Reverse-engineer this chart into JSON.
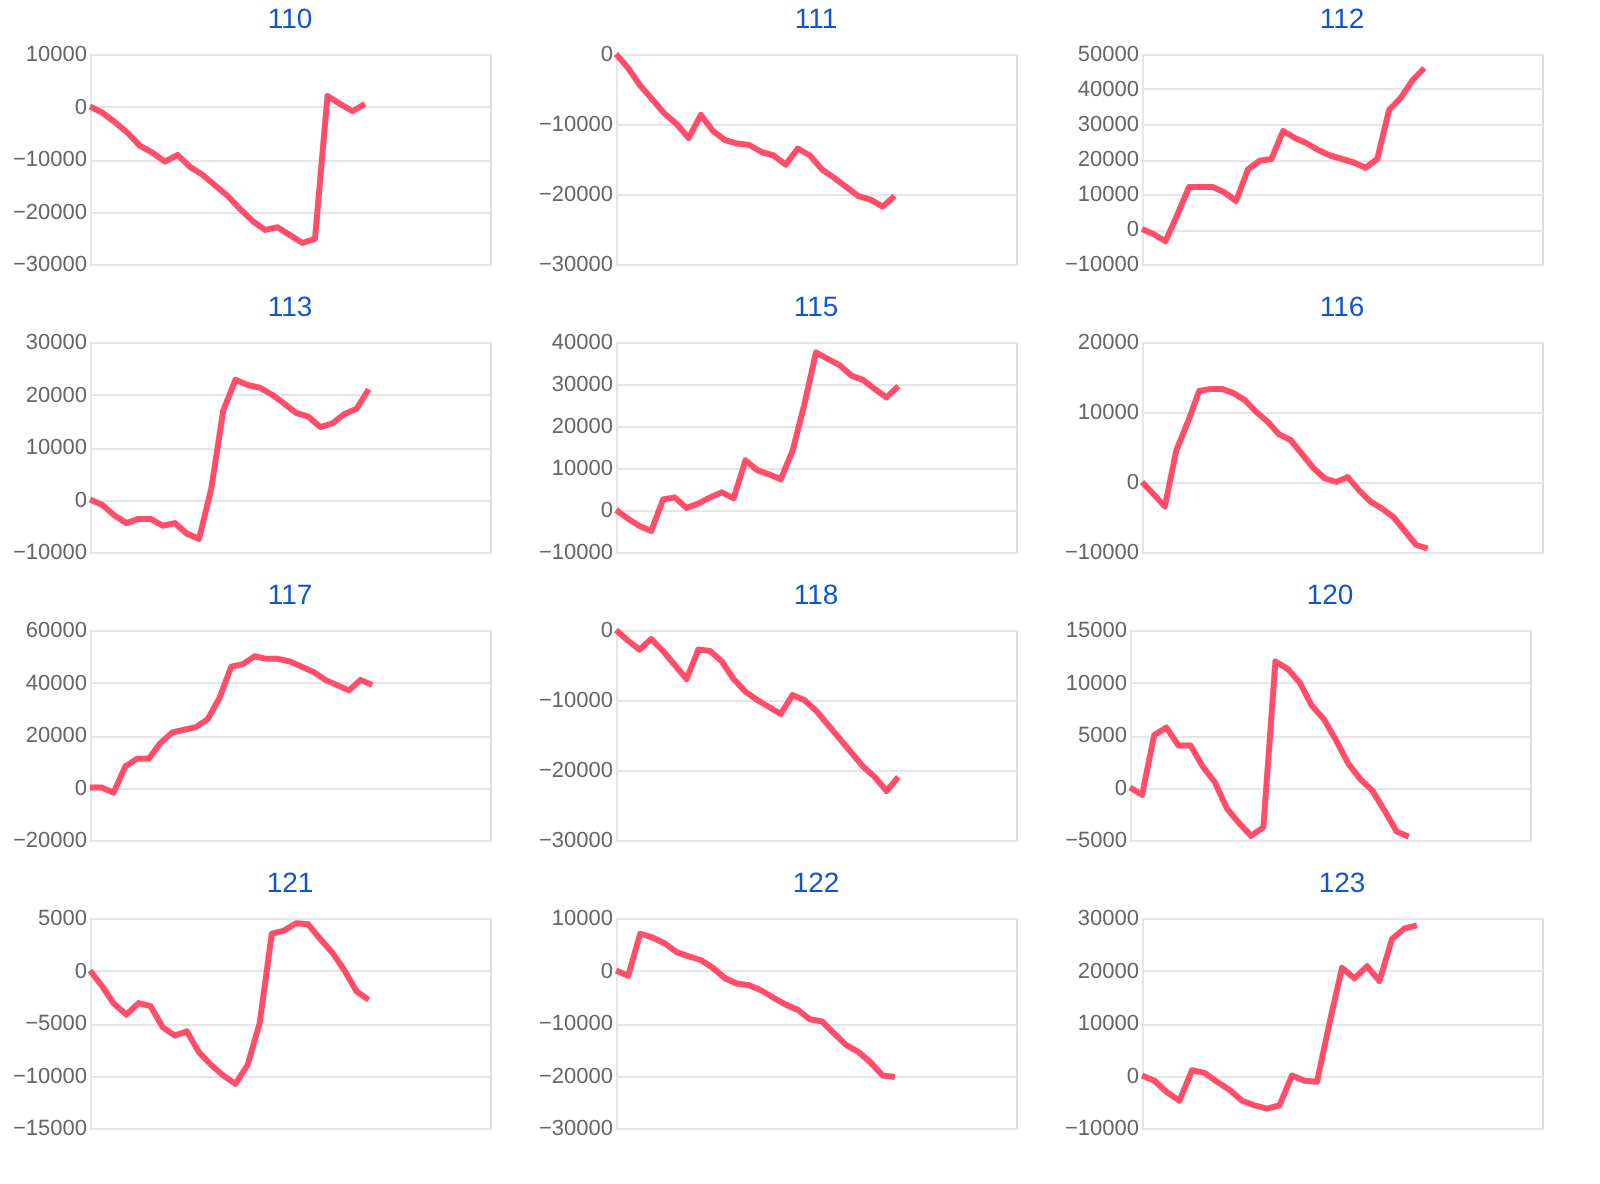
{
  "chart_data": [
    {
      "type": "line",
      "title": "110",
      "categories": [
        null,
        null,
        null,
        null,
        null,
        null,
        null,
        null,
        null,
        null,
        null,
        null,
        null,
        null,
        null,
        null,
        null,
        null,
        null,
        null,
        null,
        null,
        null,
        null,
        null,
        null,
        null,
        null,
        null,
        null,
        null,
        null,
        null
      ],
      "series": [
        {
          "color": "#ff4d6a",
          "values": [
            0,
            -1200,
            -3000,
            -5000,
            -7500,
            -8800,
            -10500,
            -9200,
            -11500,
            -13000,
            -15000,
            -17000,
            -19500,
            -21800,
            -23500,
            -23000,
            -24500,
            -26000,
            -25200,
            2000,
            500,
            -900,
            500,
            null,
            null,
            null,
            null,
            null,
            null,
            null,
            null,
            null,
            null
          ]
        }
      ],
      "ylim": [
        -30000,
        10000
      ],
      "yticks": [
        -30000,
        -20000,
        -10000,
        0,
        10000
      ],
      "grid": "y",
      "tick_labels": "y"
    },
    {
      "type": "line",
      "title": "111",
      "categories": [
        null,
        null,
        null,
        null,
        null,
        null,
        null,
        null,
        null,
        null,
        null,
        null,
        null,
        null,
        null,
        null,
        null,
        null,
        null,
        null,
        null,
        null,
        null,
        null,
        null,
        null,
        null,
        null,
        null,
        null,
        null,
        null,
        null,
        null
      ],
      "series": [
        {
          "color": "#ff4d6a",
          "values": [
            0,
            -2000,
            -4500,
            -6500,
            -8500,
            -10000,
            -12000,
            -8700,
            -11000,
            -12300,
            -12800,
            -13000,
            -14000,
            -14500,
            -15800,
            -13500,
            -14500,
            -16500,
            -17700,
            -19000,
            -20300,
            -20800,
            -21800,
            -20300,
            null,
            null,
            null,
            null,
            null,
            null,
            null,
            null,
            null,
            null
          ]
        }
      ],
      "ylim": [
        -30000,
        0
      ],
      "yticks": [
        -30000,
        -20000,
        -10000,
        0
      ],
      "grid": "y",
      "tick_labels": "y"
    },
    {
      "type": "line",
      "title": "112",
      "categories": [
        null,
        null,
        null,
        null,
        null,
        null,
        null,
        null,
        null,
        null,
        null,
        null,
        null,
        null,
        null,
        null,
        null,
        null,
        null,
        null,
        null,
        null,
        null,
        null,
        null,
        null,
        null,
        null,
        null,
        null,
        null,
        null,
        null,
        null,
        null
      ],
      "series": [
        {
          "color": "#ff4d6a",
          "values": [
            0,
            -1500,
            -3500,
            4000,
            12000,
            12000,
            12000,
            10500,
            8000,
            17000,
            19500,
            20000,
            28000,
            26000,
            24500,
            22500,
            21000,
            20000,
            19000,
            17500,
            20000,
            34000,
            37500,
            42500,
            46000,
            null,
            null,
            null,
            null,
            null,
            null,
            null,
            null,
            null,
            null
          ]
        }
      ],
      "ylim": [
        -10000,
        50000
      ],
      "yticks": [
        -10000,
        0,
        10000,
        20000,
        30000,
        40000,
        50000
      ],
      "grid": "y",
      "tick_labels": "y"
    },
    {
      "type": "line",
      "title": "113",
      "categories": [
        null,
        null,
        null,
        null,
        null,
        null,
        null,
        null,
        null,
        null,
        null,
        null,
        null,
        null,
        null,
        null,
        null,
        null,
        null,
        null,
        null,
        null,
        null,
        null,
        null,
        null,
        null,
        null,
        null,
        null,
        null,
        null,
        null,
        null
      ],
      "series": [
        {
          "color": "#ff4d6a",
          "values": [
            0,
            -1000,
            -3000,
            -4500,
            -3700,
            -3700,
            -5000,
            -4500,
            -6500,
            -7500,
            2000,
            17000,
            22800,
            21800,
            21300,
            20000,
            18300,
            16500,
            15800,
            13800,
            14500,
            16300,
            17300,
            21000,
            null,
            null,
            null,
            null,
            null,
            null,
            null,
            null,
            null,
            null
          ]
        }
      ],
      "ylim": [
        -10000,
        30000
      ],
      "yticks": [
        -10000,
        0,
        10000,
        20000,
        30000
      ],
      "grid": "y",
      "tick_labels": "y"
    },
    {
      "type": "line",
      "title": "115",
      "categories": [
        null,
        null,
        null,
        null,
        null,
        null,
        null,
        null,
        null,
        null,
        null,
        null,
        null,
        null,
        null,
        null,
        null,
        null,
        null,
        null,
        null,
        null,
        null,
        null,
        null,
        null,
        null,
        null,
        null,
        null,
        null,
        null,
        null,
        null,
        null
      ],
      "series": [
        {
          "color": "#ff4d6a",
          "values": [
            0,
            -2000,
            -3800,
            -5000,
            2500,
            3000,
            500,
            1500,
            3000,
            4200,
            2800,
            11800,
            9500,
            8500,
            7300,
            14000,
            25000,
            37500,
            36000,
            34500,
            32000,
            31000,
            28800,
            26800,
            29500,
            null,
            null,
            null,
            null,
            null,
            null,
            null,
            null,
            null,
            null
          ]
        }
      ],
      "ylim": [
        -10000,
        40000
      ],
      "yticks": [
        -10000,
        0,
        10000,
        20000,
        30000,
        40000
      ],
      "grid": "y",
      "tick_labels": "y"
    },
    {
      "type": "line",
      "title": "116",
      "categories": [
        null,
        null,
        null,
        null,
        null,
        null,
        null,
        null,
        null,
        null,
        null,
        null,
        null,
        null,
        null,
        null,
        null,
        null,
        null,
        null,
        null,
        null,
        null,
        null,
        null,
        null,
        null,
        null,
        null,
        null,
        null,
        null,
        null,
        null,
        null,
        null
      ],
      "series": [
        {
          "color": "#ff4d6a",
          "values": [
            0,
            -1700,
            -3500,
            4500,
            8500,
            13000,
            13300,
            13300,
            12700,
            11700,
            10000,
            8600,
            6800,
            6000,
            4000,
            2000,
            500,
            0,
            700,
            -1200,
            -2800,
            -3800,
            -5000,
            -7000,
            -9000,
            -9500,
            null,
            null,
            null,
            null,
            null,
            null,
            null,
            null,
            null,
            null
          ]
        }
      ],
      "ylim": [
        -10000,
        20000
      ],
      "yticks": [
        -10000,
        0,
        10000,
        20000
      ],
      "grid": "y",
      "tick_labels": "y"
    },
    {
      "type": "line",
      "title": "117",
      "categories": [
        null,
        null,
        null,
        null,
        null,
        null,
        null,
        null,
        null,
        null,
        null,
        null,
        null,
        null,
        null,
        null,
        null,
        null,
        null,
        null,
        null,
        null,
        null,
        null,
        null,
        null,
        null,
        null,
        null,
        null,
        null,
        null,
        null,
        null,
        null
      ],
      "series": [
        {
          "color": "#ff4d6a",
          "values": [
            0,
            0,
            -2000,
            8000,
            11000,
            11000,
            17000,
            21000,
            22000,
            23000,
            26000,
            34000,
            46000,
            47000,
            50000,
            49000,
            49000,
            48000,
            46000,
            44000,
            41000,
            39000,
            37000,
            41000,
            39000,
            null,
            null,
            null,
            null,
            null,
            null,
            null,
            null,
            null,
            null
          ]
        }
      ],
      "ylim": [
        -20000,
        60000
      ],
      "yticks": [
        -20000,
        0,
        20000,
        40000,
        60000
      ],
      "grid": "y",
      "tick_labels": "y"
    },
    {
      "type": "line",
      "title": "118",
      "categories": [
        null,
        null,
        null,
        null,
        null,
        null,
        null,
        null,
        null,
        null,
        null,
        null,
        null,
        null,
        null,
        null,
        null,
        null,
        null,
        null,
        null,
        null,
        null,
        null,
        null,
        null,
        null,
        null,
        null,
        null,
        null,
        null,
        null,
        null,
        null
      ],
      "series": [
        {
          "color": "#ff4d6a",
          "values": [
            0,
            -1500,
            -2800,
            -1300,
            -3000,
            -5000,
            -7000,
            -2800,
            -3000,
            -4500,
            -7000,
            -8800,
            -10000,
            -11000,
            -12000,
            -9300,
            -10000,
            -11500,
            -13500,
            -15500,
            -17500,
            -19500,
            -21000,
            -23000,
            -21000,
            null,
            null,
            null,
            null,
            null,
            null,
            null,
            null,
            null,
            null
          ]
        }
      ],
      "ylim": [
        -30000,
        0
      ],
      "yticks": [
        -30000,
        -20000,
        -10000,
        0
      ],
      "grid": "y",
      "tick_labels": "y"
    },
    {
      "type": "line",
      "title": "120",
      "categories": [
        null,
        null,
        null,
        null,
        null,
        null,
        null,
        null,
        null,
        null,
        null,
        null,
        null,
        null,
        null,
        null,
        null,
        null,
        null,
        null,
        null,
        null,
        null,
        null,
        null,
        null,
        null,
        null,
        null,
        null,
        null,
        null,
        null,
        null
      ],
      "series": [
        {
          "color": "#ff4d6a",
          "values": [
            0,
            -700,
            5000,
            5700,
            4000,
            4000,
            2000,
            500,
            -2000,
            -3400,
            -4600,
            -3800,
            12000,
            11300,
            10000,
            7800,
            6500,
            4500,
            2300,
            800,
            -300,
            -2200,
            -4200,
            -4700,
            null,
            null,
            null,
            null,
            null,
            null,
            null,
            null,
            null,
            null
          ]
        }
      ],
      "ylim": [
        -5000,
        15000
      ],
      "yticks": [
        -5000,
        0,
        5000,
        10000,
        15000
      ],
      "grid": "y",
      "tick_labels": "y"
    },
    {
      "type": "line",
      "title": "121",
      "categories": [
        null,
        null,
        null,
        null,
        null,
        null,
        null,
        null,
        null,
        null,
        null,
        null,
        null,
        null,
        null,
        null,
        null,
        null,
        null,
        null,
        null,
        null,
        null,
        null,
        null,
        null,
        null,
        null,
        null,
        null,
        null,
        null,
        null,
        null
      ],
      "series": [
        {
          "color": "#ff4d6a",
          "values": [
            0,
            -1500,
            -3200,
            -4200,
            -3100,
            -3400,
            -5400,
            -6200,
            -5800,
            -7800,
            -9000,
            -10000,
            -10800,
            -9000,
            -5000,
            3500,
            3800,
            4500,
            4400,
            3000,
            1700,
            0,
            -2000,
            -2800,
            null,
            null,
            null,
            null,
            null,
            null,
            null,
            null,
            null,
            null
          ]
        }
      ],
      "ylim": [
        -15000,
        5000
      ],
      "yticks": [
        -15000,
        -10000,
        -5000,
        0,
        5000
      ],
      "grid": "y",
      "tick_labels": "y"
    },
    {
      "type": "line",
      "title": "122",
      "categories": [
        null,
        null,
        null,
        null,
        null,
        null,
        null,
        null,
        null,
        null,
        null,
        null,
        null,
        null,
        null,
        null,
        null,
        null,
        null,
        null,
        null,
        null,
        null,
        null,
        null,
        null,
        null,
        null,
        null,
        null,
        null,
        null,
        null,
        null
      ],
      "series": [
        {
          "color": "#ff4d6a",
          "values": [
            0,
            -1000,
            7000,
            6300,
            5200,
            3500,
            2700,
            2000,
            500,
            -1500,
            -2500,
            -2800,
            -3800,
            -5200,
            -6500,
            -7500,
            -9300,
            -9700,
            -12000,
            -14200,
            -15500,
            -17500,
            -20000,
            -20300,
            null,
            null,
            null,
            null,
            null,
            null,
            null,
            null,
            null,
            null
          ]
        }
      ],
      "ylim": [
        -30000,
        10000
      ],
      "yticks": [
        -30000,
        -20000,
        -10000,
        0,
        10000
      ],
      "grid": "y",
      "tick_labels": "y"
    },
    {
      "type": "line",
      "title": "123",
      "categories": [
        null,
        null,
        null,
        null,
        null,
        null,
        null,
        null,
        null,
        null,
        null,
        null,
        null,
        null,
        null,
        null,
        null,
        null,
        null,
        null,
        null,
        null,
        null,
        null,
        null,
        null,
        null,
        null,
        null,
        null,
        null,
        null,
        null
      ],
      "series": [
        {
          "color": "#ff4d6a",
          "values": [
            0,
            -1000,
            -3200,
            -4800,
            1000,
            500,
            -1200,
            -2700,
            -4800,
            -5700,
            -6300,
            -5700,
            0,
            -1000,
            -1200,
            10000,
            20500,
            18500,
            20800,
            18000,
            26000,
            28000,
            28600,
            null,
            null,
            null,
            null,
            null,
            null,
            null,
            null,
            null,
            null
          ]
        }
      ],
      "ylim": [
        -10000,
        30000
      ],
      "yticks": [
        -10000,
        0,
        10000,
        20000,
        30000
      ],
      "grid": "y",
      "tick_labels": "y"
    }
  ]
}
